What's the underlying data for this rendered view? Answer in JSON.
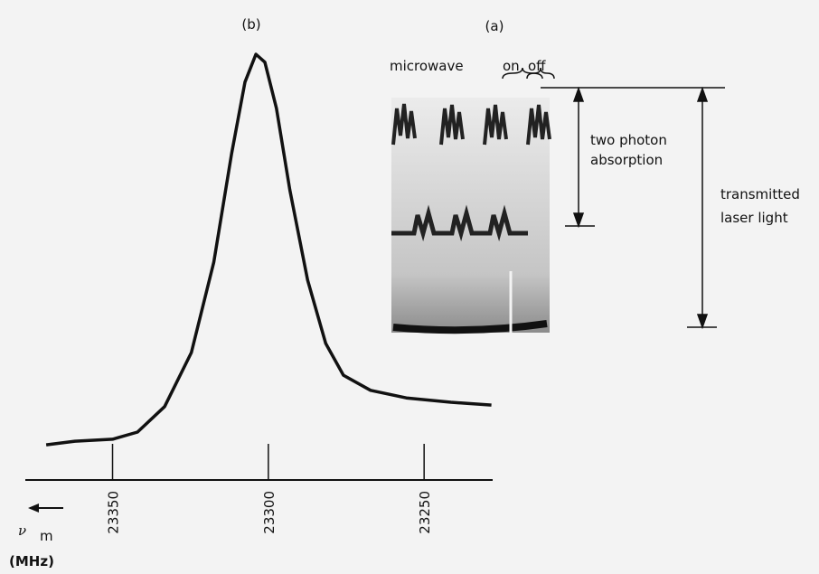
{
  "chart_data": {
    "type": "line",
    "x": [
      23371.3,
      23362.1,
      23350,
      23342,
      23333.3,
      23324.7,
      23317.5,
      23311.8,
      23307.5,
      23304,
      23301.1,
      23297.4,
      23293.1,
      23287.4,
      23281.6,
      23275.9,
      23267.2,
      23255.7,
      23241.4,
      23228.4
    ],
    "values": [
      0.018,
      0.027,
      0.032,
      0.05,
      0.114,
      0.25,
      0.477,
      0.75,
      0.93,
      1.0,
      0.98,
      0.864,
      0.659,
      0.432,
      0.273,
      0.193,
      0.155,
      0.136,
      0.125,
      0.118
    ],
    "color": "#111111",
    "xlim": [
      23378,
      23228
    ],
    "xticks": [
      23350,
      23300,
      23250
    ],
    "ylim": [
      0,
      1
    ],
    "xlabel": {
      "symbol": "ν",
      "subscript": "m",
      "unit": "(MHz)"
    },
    "annotations": {
      "panel_b": "(b)",
      "panel_a": "(a)",
      "microwave": "microwave",
      "on": "on",
      "off": "off",
      "two_photon": [
        "two photon",
        "absorption"
      ],
      "transmitted": [
        "transmitted",
        "laser light"
      ]
    }
  }
}
